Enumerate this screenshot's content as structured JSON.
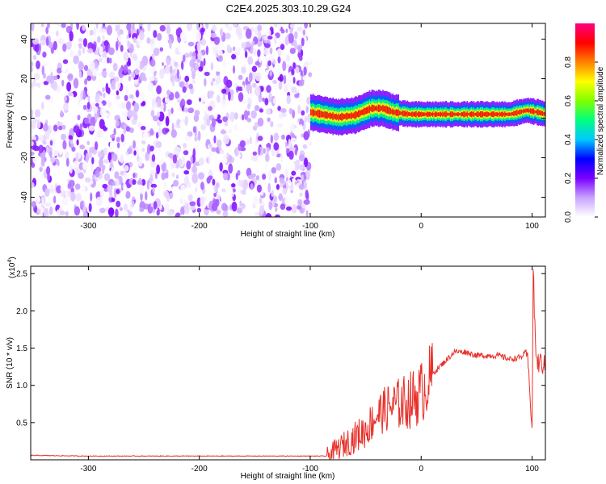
{
  "title": "C2E4.2025.303.10.29.G24",
  "colors": {
    "snr_line": "#e8302a",
    "frame": "#000000",
    "background": "#ffffff"
  },
  "chart_data": [
    {
      "type": "heatmap",
      "xlabel": "Height of straight line (km)",
      "ylabel": "Frequency (Hz)",
      "xlim": [
        -352,
        112
      ],
      "ylim": [
        -50,
        48
      ],
      "xticks": [
        -300,
        -200,
        -100,
        0,
        100
      ],
      "yticks": [
        -40,
        -20,
        0,
        20,
        40
      ],
      "colorbar": {
        "label": "Normalized spectral amplitude",
        "range": [
          0,
          1
        ],
        "ticks": [
          "0.0",
          "0.2",
          "0.4",
          "0.6",
          "0.8"
        ],
        "colormap": [
          "#ffffff",
          "#c9a3ff",
          "#7b00ff",
          "#0000ff",
          "#00c8ff",
          "#00ff80",
          "#80ff00",
          "#ffff00",
          "#ff8000",
          "#ff0000",
          "#ff0080"
        ]
      },
      "regions": [
        {
          "name": "noise",
          "x": [
            -352,
            -100
          ],
          "y": [
            -50,
            48
          ],
          "amplitude_range": [
            0.0,
            0.2
          ]
        },
        {
          "name": "signal",
          "x": [
            -100,
            112
          ],
          "amplitude_range": [
            0.3,
            0.95
          ],
          "center_freq": [
            {
              "x": -100,
              "y": 3
            },
            {
              "x": -90,
              "y": 2
            },
            {
              "x": -75,
              "y": 0.5
            },
            {
              "x": -60,
              "y": 1.5
            },
            {
              "x": -45,
              "y": 5
            },
            {
              "x": -35,
              "y": 5
            },
            {
              "x": -25,
              "y": 3
            },
            {
              "x": -10,
              "y": 2
            },
            {
              "x": 0,
              "y": 2
            },
            {
              "x": 20,
              "y": 2
            },
            {
              "x": 50,
              "y": 2
            },
            {
              "x": 80,
              "y": 2
            },
            {
              "x": 95,
              "y": 4
            },
            {
              "x": 105,
              "y": 3
            },
            {
              "x": 112,
              "y": 2
            }
          ]
        }
      ]
    },
    {
      "type": "line",
      "xlabel": "Height of straight line (km)",
      "ylabel": "SNR (10 * v/v)",
      "yscale_label": "(x10",
      "yscale_exp": "4",
      "xlim": [
        -352,
        112
      ],
      "ylim": [
        0,
        2.6
      ],
      "xticks": [
        -300,
        -200,
        -100,
        0,
        100
      ],
      "yticks": [
        "0.5",
        "1.0",
        "1.5",
        "2.0",
        "2.5"
      ],
      "series": [
        {
          "values": [
            {
              "x": -352,
              "y": 0.06
            },
            {
              "x": -300,
              "y": 0.05
            },
            {
              "x": -250,
              "y": 0.05
            },
            {
              "x": -200,
              "y": 0.05
            },
            {
              "x": -150,
              "y": 0.05
            },
            {
              "x": -100,
              "y": 0.05
            },
            {
              "x": -85,
              "y": 0.05
            },
            {
              "x": -80,
              "y": 0.1
            },
            {
              "x": -70,
              "y": 0.2
            },
            {
              "x": -60,
              "y": 0.3
            },
            {
              "x": -50,
              "y": 0.4
            },
            {
              "x": -40,
              "y": 0.6
            },
            {
              "x": -30,
              "y": 0.7
            },
            {
              "x": -20,
              "y": 0.75
            },
            {
              "x": -10,
              "y": 0.8
            },
            {
              "x": 0,
              "y": 0.9
            },
            {
              "x": 10,
              "y": 1.15
            },
            {
              "x": 20,
              "y": 1.3
            },
            {
              "x": 30,
              "y": 1.45
            },
            {
              "x": 40,
              "y": 1.45
            },
            {
              "x": 50,
              "y": 1.4
            },
            {
              "x": 60,
              "y": 1.4
            },
            {
              "x": 70,
              "y": 1.4
            },
            {
              "x": 80,
              "y": 1.35
            },
            {
              "x": 90,
              "y": 1.38
            },
            {
              "x": 95,
              "y": 1.45
            },
            {
              "x": 98,
              "y": 1.0
            },
            {
              "x": 100,
              "y": 0.35
            },
            {
              "x": 101,
              "y": 2.6
            },
            {
              "x": 102,
              "y": 2.0
            },
            {
              "x": 104,
              "y": 1.3
            },
            {
              "x": 108,
              "y": 1.3
            },
            {
              "x": 112,
              "y": 1.25
            }
          ]
        }
      ]
    }
  ]
}
